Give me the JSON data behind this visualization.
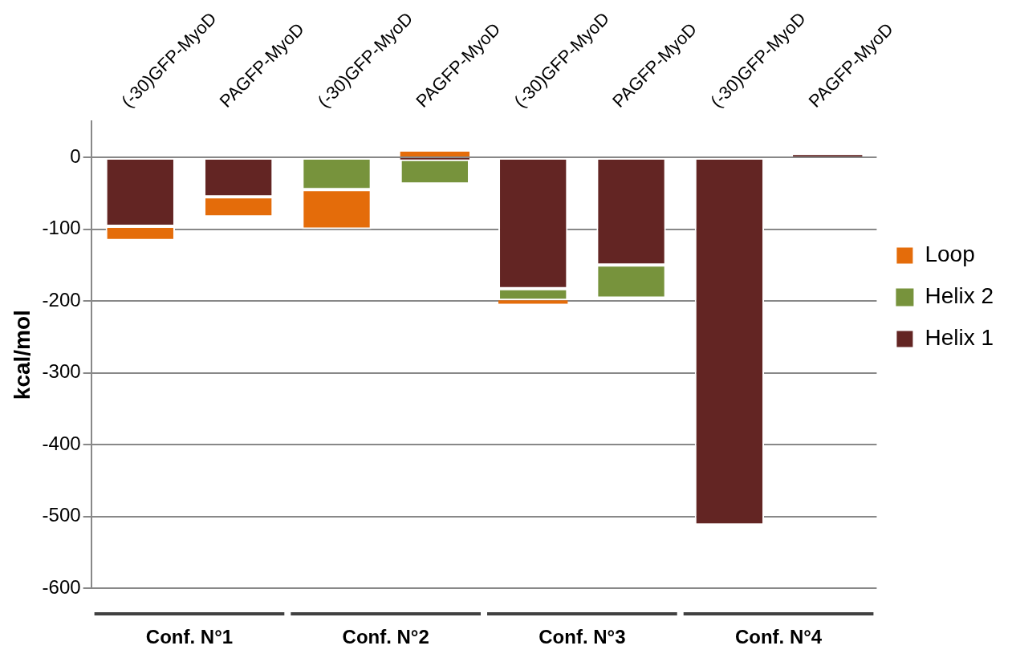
{
  "chart_data": {
    "type": "bar",
    "stacked": true,
    "ylabel": "kcal/mol",
    "categories": [
      "(-30)GFP-MyoD",
      "PAGFP-MyoD",
      "(-30)GFP-MyoD",
      "PAGFP-MyoD",
      "(-30)GFP-MyoD",
      "PAGFP-MyoD",
      "(-30)GFP-MyoD",
      "PAGFP-MyoD"
    ],
    "series": [
      {
        "name": "Helix 1",
        "color": "#632523",
        "values": [
          -96,
          -55,
          null,
          -3,
          -183,
          -150,
          -512,
          3
        ]
      },
      {
        "name": "Helix 2",
        "color": "#77933c",
        "values": [
          null,
          null,
          -45,
          -34,
          -16,
          -46,
          null,
          null
        ]
      },
      {
        "name": "Loop",
        "color": "#e46c0a",
        "values": [
          -20,
          -28,
          -55,
          8,
          -5,
          null,
          null,
          null
        ]
      }
    ],
    "ylim": [
      -600,
      50
    ],
    "yticks": [
      -600,
      -500,
      -400,
      -300,
      -200,
      -100,
      0
    ],
    "grid": "y",
    "legend": "right",
    "annotations": [
      "Conf. N°1",
      "Conf. N°2",
      "Conf. N°3",
      "Conf. N°4"
    ]
  }
}
